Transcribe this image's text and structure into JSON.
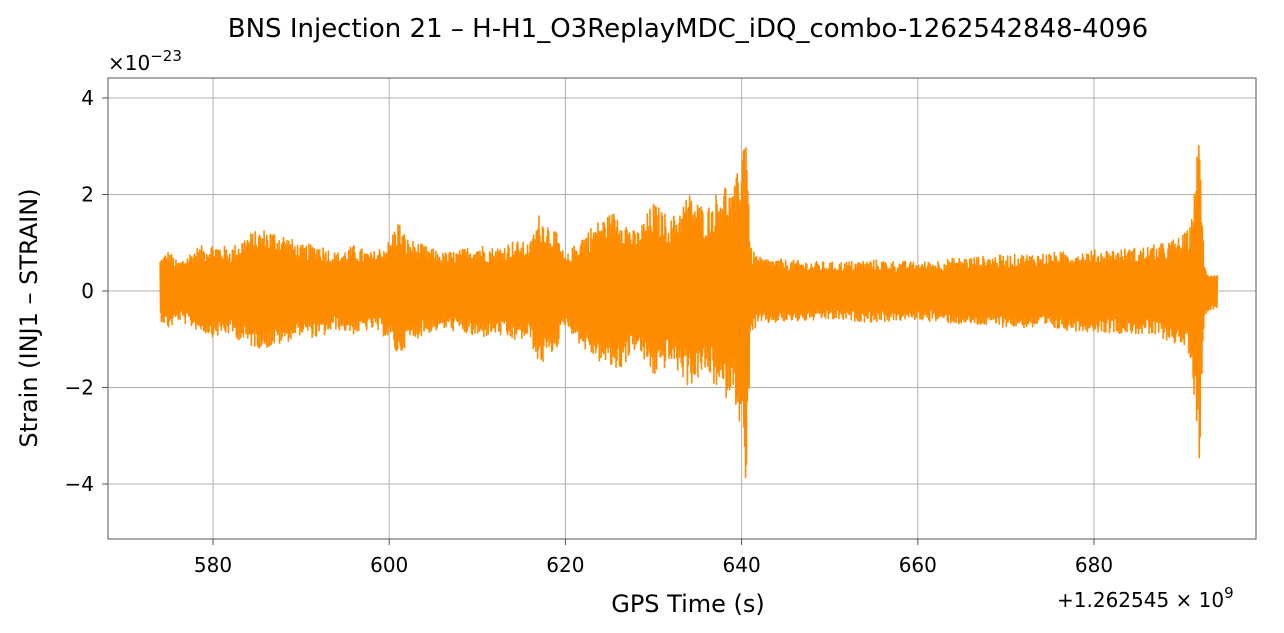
{
  "chart_data": {
    "type": "line",
    "title": "BNS Injection 21 – H-H1_O3ReplayMDC_iDQ_combo-1262542848-4096",
    "xlabel": "GPS Time (s)",
    "ylabel": "Strain (INJ1 – STRAIN)",
    "x_offset_label": "+1.262545 × 10",
    "x_offset_exponent": "9",
    "y_scale_label": "×10",
    "y_scale_exponent": "−23",
    "xlim": [
      568,
      1268
    ],
    "ylim": [
      -5.15,
      4.4
    ],
    "xticks": [
      580,
      600,
      620,
      640,
      660,
      680
    ],
    "xtick_labels": [
      "580",
      "600",
      "620",
      "640",
      "660",
      "680"
    ],
    "yticks": [
      -4,
      -2,
      0,
      2,
      4
    ],
    "ytick_labels": [
      "−4",
      "−2",
      "0",
      "2",
      "4"
    ],
    "grid": true,
    "series": [
      {
        "color": "#ff8c00",
        "envelope": {
          "x": [
            574,
            575,
            576,
            578,
            580,
            582,
            584,
            586,
            588,
            590,
            592,
            594,
            596,
            598,
            600,
            601,
            602,
            604,
            606,
            608,
            610,
            612,
            614,
            616,
            617,
            618,
            619,
            620,
            622,
            624,
            626,
            628,
            630,
            632,
            634,
            636,
            638,
            639,
            640,
            640.5,
            641,
            642,
            645,
            650,
            655,
            660,
            665,
            670,
            675,
            680,
            685,
            688,
            690,
            691,
            691.5,
            692,
            692.5,
            693,
            694
          ],
          "upper": [
            0.7,
            0.85,
            0.6,
            0.9,
            1.0,
            0.9,
            1.2,
            1.3,
            1.2,
            0.95,
            1.0,
            0.8,
            0.95,
            0.8,
            1.05,
            1.5,
            1.1,
            0.95,
            0.8,
            0.85,
            1.0,
            0.9,
            1.05,
            1.0,
            1.6,
            1.45,
            1.2,
            0.7,
            1.2,
            1.5,
            1.7,
            1.2,
            1.85,
            1.5,
            2.05,
            1.7,
            2.3,
            2.0,
            2.9,
            3.9,
            0.9,
            0.7,
            0.65,
            0.6,
            0.65,
            0.6,
            0.7,
            0.75,
            0.8,
            0.85,
            0.9,
            1.0,
            1.15,
            1.35,
            2.5,
            3.35,
            0.55,
            0.4,
            0.35
          ],
          "lower": [
            -0.6,
            -0.8,
            -0.6,
            -0.8,
            -0.95,
            -0.9,
            -1.15,
            -1.2,
            -1.1,
            -0.9,
            -1.0,
            -0.8,
            -0.9,
            -0.8,
            -1.0,
            -1.4,
            -1.1,
            -0.9,
            -0.8,
            -0.85,
            -1.0,
            -0.9,
            -1.05,
            -1.0,
            -1.6,
            -1.4,
            -1.2,
            -0.7,
            -1.2,
            -1.5,
            -1.7,
            -1.2,
            -1.8,
            -1.5,
            -2.0,
            -1.7,
            -2.3,
            -2.0,
            -3.0,
            -4.7,
            -0.9,
            -0.7,
            -0.65,
            -0.6,
            -0.65,
            -0.6,
            -0.7,
            -0.75,
            -0.8,
            -0.85,
            -0.9,
            -1.0,
            -1.15,
            -1.4,
            -2.5,
            -3.6,
            -0.55,
            -0.4,
            -0.35
          ]
        }
      }
    ]
  }
}
